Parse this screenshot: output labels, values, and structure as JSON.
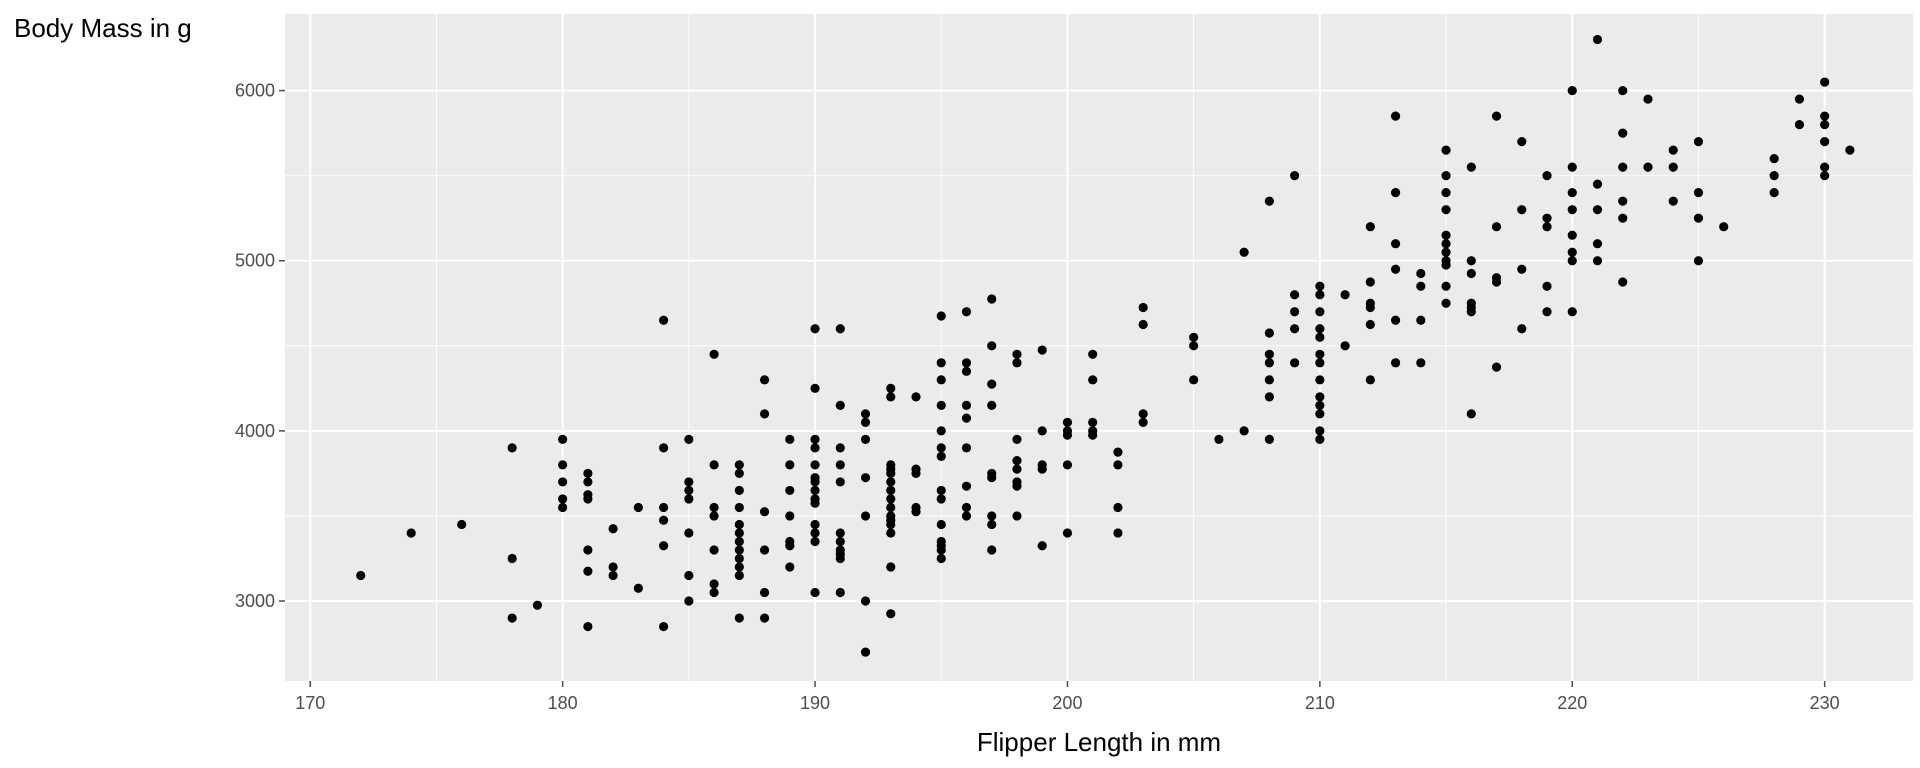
{
  "chart_data": {
    "type": "scatter",
    "title": "",
    "xlabel": "Flipper Length in mm",
    "ylabel": "Body Mass in g",
    "xlim": [
      169,
      233.5
    ],
    "ylim": [
      2530,
      6450
    ],
    "x_ticks": [
      170,
      180,
      190,
      200,
      210,
      220,
      230
    ],
    "y_ticks": [
      3000,
      4000,
      5000,
      6000
    ],
    "x_tick_labels": [
      "170",
      "180",
      "190",
      "200",
      "210",
      "220",
      "230"
    ],
    "y_tick_labels": [
      "3000",
      "4000",
      "5000",
      "6000"
    ],
    "grid": true,
    "legend": "none",
    "colors": {
      "panel": "#ebebeb",
      "grid_major": "#ffffff",
      "point": "#000000",
      "tick": "#4d4d4d"
    },
    "points": [
      [
        172,
        3150
      ],
      [
        174,
        3400
      ],
      [
        176,
        3450
      ],
      [
        178,
        3900
      ],
      [
        178,
        3250
      ],
      [
        178,
        2900
      ],
      [
        179,
        2975
      ],
      [
        180,
        3950
      ],
      [
        180,
        3800
      ],
      [
        180,
        3700
      ],
      [
        180,
        3600
      ],
      [
        180,
        3550
      ],
      [
        181,
        3750
      ],
      [
        181,
        3700
      ],
      [
        181,
        3625
      ],
      [
        181,
        3600
      ],
      [
        181,
        3300
      ],
      [
        181,
        3175
      ],
      [
        181,
        2850
      ],
      [
        182,
        3425
      ],
      [
        182,
        3200
      ],
      [
        182,
        3150
      ],
      [
        183,
        3550
      ],
      [
        183,
        3075
      ],
      [
        184,
        4650
      ],
      [
        184,
        3900
      ],
      [
        184,
        3550
      ],
      [
        184,
        3475
      ],
      [
        184,
        3325
      ],
      [
        184,
        2850
      ],
      [
        185,
        3950
      ],
      [
        185,
        3700
      ],
      [
        185,
        3650
      ],
      [
        185,
        3600
      ],
      [
        185,
        3400
      ],
      [
        185,
        3150
      ],
      [
        185,
        3000
      ],
      [
        186,
        4450
      ],
      [
        186,
        3800
      ],
      [
        186,
        3550
      ],
      [
        186,
        3500
      ],
      [
        186,
        3300
      ],
      [
        186,
        3100
      ],
      [
        186,
        3050
      ],
      [
        187,
        3800
      ],
      [
        187,
        3750
      ],
      [
        187,
        3650
      ],
      [
        187,
        3550
      ],
      [
        187,
        3450
      ],
      [
        187,
        3400
      ],
      [
        187,
        3350
      ],
      [
        187,
        3300
      ],
      [
        187,
        3250
      ],
      [
        187,
        3200
      ],
      [
        187,
        3150
      ],
      [
        187,
        2900
      ],
      [
        188,
        4300
      ],
      [
        188,
        4100
      ],
      [
        188,
        3525
      ],
      [
        188,
        3300
      ],
      [
        188,
        3050
      ],
      [
        188,
        2900
      ],
      [
        189,
        3950
      ],
      [
        189,
        3800
      ],
      [
        189,
        3650
      ],
      [
        189,
        3500
      ],
      [
        189,
        3350
      ],
      [
        189,
        3325
      ],
      [
        189,
        3200
      ],
      [
        190,
        4600
      ],
      [
        190,
        4250
      ],
      [
        190,
        3950
      ],
      [
        190,
        3900
      ],
      [
        190,
        3800
      ],
      [
        190,
        3725
      ],
      [
        190,
        3700
      ],
      [
        190,
        3650
      ],
      [
        190,
        3600
      ],
      [
        190,
        3575
      ],
      [
        190,
        3450
      ],
      [
        190,
        3400
      ],
      [
        190,
        3350
      ],
      [
        190,
        3050
      ],
      [
        191,
        4600
      ],
      [
        191,
        4150
      ],
      [
        191,
        3900
      ],
      [
        191,
        3800
      ],
      [
        191,
        3700
      ],
      [
        191,
        3400
      ],
      [
        191,
        3350
      ],
      [
        191,
        3300
      ],
      [
        191,
        3275
      ],
      [
        191,
        3250
      ],
      [
        191,
        3050
      ],
      [
        192,
        4100
      ],
      [
        192,
        4050
      ],
      [
        192,
        3950
      ],
      [
        192,
        3725
      ],
      [
        192,
        3500
      ],
      [
        192,
        3000
      ],
      [
        192,
        2700
      ],
      [
        193,
        4250
      ],
      [
        193,
        4200
      ],
      [
        193,
        3800
      ],
      [
        193,
        3775
      ],
      [
        193,
        3750
      ],
      [
        193,
        3700
      ],
      [
        193,
        3650
      ],
      [
        193,
        3600
      ],
      [
        193,
        3550
      ],
      [
        193,
        3500
      ],
      [
        193,
        3475
      ],
      [
        193,
        3450
      ],
      [
        193,
        3400
      ],
      [
        193,
        3200
      ],
      [
        193,
        2925
      ],
      [
        194,
        4200
      ],
      [
        194,
        3775
      ],
      [
        194,
        3750
      ],
      [
        194,
        3550
      ],
      [
        194,
        3525
      ],
      [
        195,
        4675
      ],
      [
        195,
        4400
      ],
      [
        195,
        4300
      ],
      [
        195,
        4150
      ],
      [
        195,
        4000
      ],
      [
        195,
        3900
      ],
      [
        195,
        3850
      ],
      [
        195,
        3650
      ],
      [
        195,
        3600
      ],
      [
        195,
        3450
      ],
      [
        195,
        3350
      ],
      [
        195,
        3325
      ],
      [
        195,
        3300
      ],
      [
        195,
        3250
      ],
      [
        196,
        4700
      ],
      [
        196,
        4400
      ],
      [
        196,
        4350
      ],
      [
        196,
        4150
      ],
      [
        196,
        4075
      ],
      [
        196,
        3900
      ],
      [
        196,
        3675
      ],
      [
        196,
        3550
      ],
      [
        196,
        3500
      ],
      [
        197,
        4775
      ],
      [
        197,
        4500
      ],
      [
        197,
        4275
      ],
      [
        197,
        4150
      ],
      [
        197,
        3750
      ],
      [
        197,
        3725
      ],
      [
        197,
        3500
      ],
      [
        197,
        3450
      ],
      [
        197,
        3300
      ],
      [
        198,
        4450
      ],
      [
        198,
        4400
      ],
      [
        198,
        3950
      ],
      [
        198,
        3825
      ],
      [
        198,
        3775
      ],
      [
        198,
        3700
      ],
      [
        198,
        3675
      ],
      [
        198,
        3500
      ],
      [
        199,
        4475
      ],
      [
        199,
        4000
      ],
      [
        199,
        3800
      ],
      [
        199,
        3775
      ],
      [
        199,
        3325
      ],
      [
        200,
        4050
      ],
      [
        200,
        4000
      ],
      [
        200,
        3975
      ],
      [
        200,
        3800
      ],
      [
        200,
        3400
      ],
      [
        201,
        4450
      ],
      [
        201,
        4300
      ],
      [
        201,
        4050
      ],
      [
        201,
        4000
      ],
      [
        201,
        3975
      ],
      [
        202,
        3875
      ],
      [
        202,
        3800
      ],
      [
        202,
        3550
      ],
      [
        202,
        3400
      ],
      [
        203,
        4725
      ],
      [
        203,
        4625
      ],
      [
        203,
        4100
      ],
      [
        203,
        4050
      ],
      [
        205,
        4550
      ],
      [
        205,
        4500
      ],
      [
        205,
        4300
      ],
      [
        206,
        3950
      ],
      [
        207,
        5050
      ],
      [
        207,
        4000
      ],
      [
        208,
        5350
      ],
      [
        208,
        4575
      ],
      [
        208,
        4450
      ],
      [
        208,
        4400
      ],
      [
        208,
        4300
      ],
      [
        208,
        4200
      ],
      [
        208,
        3950
      ],
      [
        209,
        5500
      ],
      [
        209,
        4800
      ],
      [
        209,
        4700
      ],
      [
        209,
        4600
      ],
      [
        209,
        4400
      ],
      [
        210,
        4850
      ],
      [
        210,
        4800
      ],
      [
        210,
        4700
      ],
      [
        210,
        4600
      ],
      [
        210,
        4550
      ],
      [
        210,
        4450
      ],
      [
        210,
        4400
      ],
      [
        210,
        4300
      ],
      [
        210,
        4200
      ],
      [
        210,
        4150
      ],
      [
        210,
        4100
      ],
      [
        210,
        4000
      ],
      [
        210,
        3950
      ],
      [
        211,
        4800
      ],
      [
        211,
        4500
      ],
      [
        212,
        5200
      ],
      [
        212,
        4875
      ],
      [
        212,
        4750
      ],
      [
        212,
        4725
      ],
      [
        212,
        4625
      ],
      [
        212,
        4300
      ],
      [
        213,
        5850
      ],
      [
        213,
        5400
      ],
      [
        213,
        5100
      ],
      [
        213,
        4950
      ],
      [
        213,
        4650
      ],
      [
        213,
        4400
      ],
      [
        214,
        4925
      ],
      [
        214,
        4850
      ],
      [
        214,
        4650
      ],
      [
        214,
        4400
      ],
      [
        215,
        5650
      ],
      [
        215,
        5500
      ],
      [
        215,
        5400
      ],
      [
        215,
        5300
      ],
      [
        215,
        5150
      ],
      [
        215,
        5100
      ],
      [
        215,
        5050
      ],
      [
        215,
        5000
      ],
      [
        215,
        4975
      ],
      [
        215,
        4850
      ],
      [
        215,
        4750
      ],
      [
        216,
        5550
      ],
      [
        216,
        5000
      ],
      [
        216,
        4925
      ],
      [
        216,
        4750
      ],
      [
        216,
        4725
      ],
      [
        216,
        4700
      ],
      [
        216,
        4100
      ],
      [
        217,
        5850
      ],
      [
        217,
        5200
      ],
      [
        217,
        4900
      ],
      [
        217,
        4875
      ],
      [
        217,
        4375
      ],
      [
        218,
        5700
      ],
      [
        218,
        5300
      ],
      [
        218,
        4950
      ],
      [
        218,
        4600
      ],
      [
        219,
        5500
      ],
      [
        219,
        5250
      ],
      [
        219,
        5200
      ],
      [
        219,
        4850
      ],
      [
        219,
        4700
      ],
      [
        220,
        6000
      ],
      [
        220,
        5550
      ],
      [
        220,
        5400
      ],
      [
        220,
        5300
      ],
      [
        220,
        5150
      ],
      [
        220,
        5050
      ],
      [
        220,
        5000
      ],
      [
        220,
        4700
      ],
      [
        221,
        6300
      ],
      [
        221,
        5450
      ],
      [
        221,
        5300
      ],
      [
        221,
        5100
      ],
      [
        221,
        5000
      ],
      [
        222,
        6000
      ],
      [
        222,
        5750
      ],
      [
        222,
        5550
      ],
      [
        222,
        5350
      ],
      [
        222,
        5250
      ],
      [
        222,
        4875
      ],
      [
        223,
        5950
      ],
      [
        223,
        5550
      ],
      [
        224,
        5650
      ],
      [
        224,
        5550
      ],
      [
        224,
        5350
      ],
      [
        225,
        5700
      ],
      [
        225,
        5400
      ],
      [
        225,
        5250
      ],
      [
        225,
        5000
      ],
      [
        226,
        5200
      ],
      [
        228,
        5600
      ],
      [
        228,
        5500
      ],
      [
        228,
        5400
      ],
      [
        229,
        5950
      ],
      [
        229,
        5800
      ],
      [
        230,
        6050
      ],
      [
        230,
        5850
      ],
      [
        230,
        5800
      ],
      [
        230,
        5700
      ],
      [
        230,
        5550
      ],
      [
        230,
        5500
      ],
      [
        231,
        5650
      ]
    ]
  }
}
